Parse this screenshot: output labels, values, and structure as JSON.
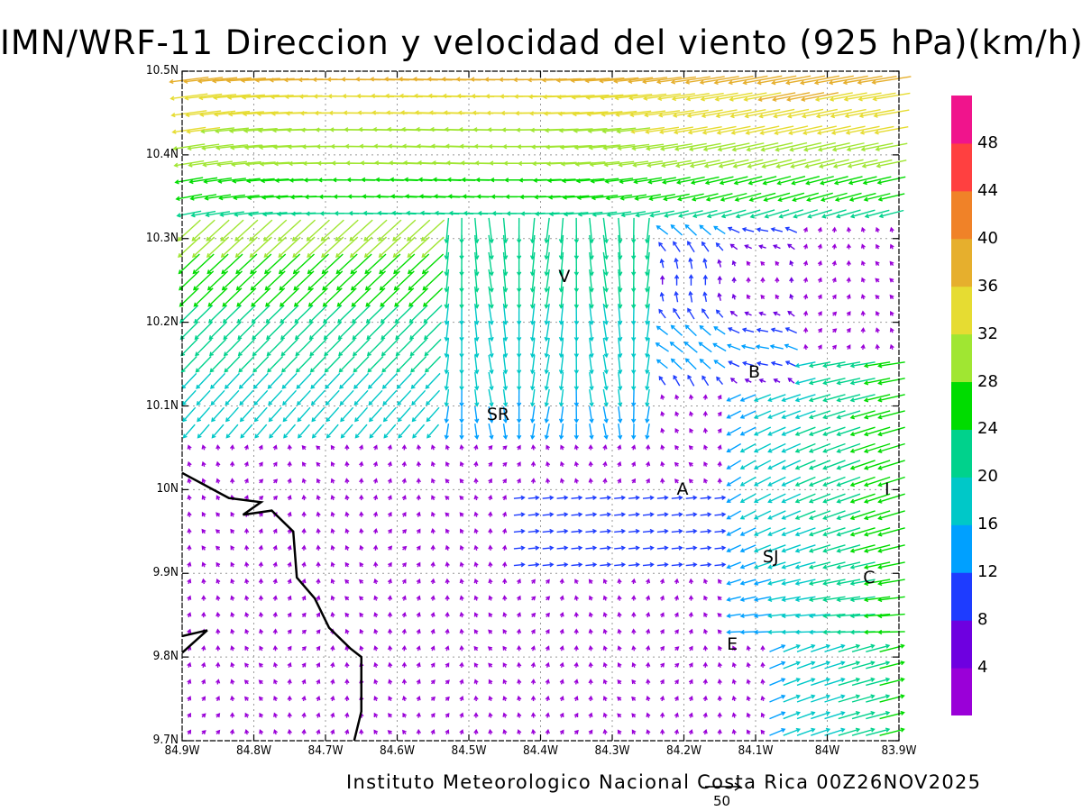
{
  "title": "IMN/WRF-11 Direccion y velocidad del viento (925 hPa)(km/h)",
  "footer": "Instituto Meteorologico Nacional Costa Rica 00Z26NOV2025",
  "reference_vector": {
    "value": 50,
    "label": "50"
  },
  "axes": {
    "x_range": [
      -84.9,
      -83.9
    ],
    "y_range": [
      9.7,
      10.5
    ],
    "x_ticks": [
      {
        "value": -84.9,
        "label": "84.9W"
      },
      {
        "value": -84.8,
        "label": "84.8W"
      },
      {
        "value": -84.7,
        "label": "84.7W"
      },
      {
        "value": -84.6,
        "label": "84.6W"
      },
      {
        "value": -84.5,
        "label": "84.5W"
      },
      {
        "value": -84.4,
        "label": "84.4W"
      },
      {
        "value": -84.3,
        "label": "84.3W"
      },
      {
        "value": -84.2,
        "label": "84.2W"
      },
      {
        "value": -84.1,
        "label": "84.1W"
      },
      {
        "value": -84.0,
        "label": "84W"
      },
      {
        "value": -83.9,
        "label": "83.9W"
      }
    ],
    "y_ticks": [
      {
        "value": 9.7,
        "label": "9.7N"
      },
      {
        "value": 9.8,
        "label": "9.8N"
      },
      {
        "value": 9.9,
        "label": "9.9N"
      },
      {
        "value": 10.0,
        "label": "10N"
      },
      {
        "value": 10.1,
        "label": "10.1N"
      },
      {
        "value": 10.2,
        "label": "10.2N"
      },
      {
        "value": 10.3,
        "label": "10.3N"
      },
      {
        "value": 10.4,
        "label": "10.4N"
      },
      {
        "value": 10.5,
        "label": "10.5N"
      }
    ],
    "grid": true
  },
  "colorbar": {
    "colors": [
      "#9a00d8",
      "#6e00e0",
      "#1e3cff",
      "#00a0ff",
      "#00c8c8",
      "#00d28c",
      "#00dc00",
      "#a0e632",
      "#e6dc32",
      "#e6af2d",
      "#f08228",
      "#ff4040",
      "#f0148c"
    ],
    "labels": [
      {
        "level": 1,
        "label": "4"
      },
      {
        "level": 2,
        "label": "8"
      },
      {
        "level": 3,
        "label": "12"
      },
      {
        "level": 4,
        "label": "16"
      },
      {
        "level": 5,
        "label": "20"
      },
      {
        "level": 6,
        "label": "24"
      },
      {
        "level": 7,
        "label": "28"
      },
      {
        "level": 8,
        "label": "32"
      },
      {
        "level": 9,
        "label": "36"
      },
      {
        "level": 10,
        "label": "40"
      },
      {
        "level": 11,
        "label": "44"
      },
      {
        "level": 12,
        "label": "48"
      }
    ]
  },
  "cities": [
    {
      "name": "V",
      "lon": -84.365,
      "lat": 10.255
    },
    {
      "name": "B",
      "lon": -84.1,
      "lat": 10.14
    },
    {
      "name": "SR",
      "lon": -84.465,
      "lat": 10.09
    },
    {
      "name": "A",
      "lon": -84.2,
      "lat": 10.0
    },
    {
      "name": "I",
      "lon": -83.91,
      "lat": 10.0
    },
    {
      "name": "SJ",
      "lon": -84.08,
      "lat": 9.92
    },
    {
      "name": "C",
      "lon": -83.94,
      "lat": 9.895
    },
    {
      "name": "E",
      "lon": -84.13,
      "lat": 9.815
    }
  ],
  "coastline": [
    [
      -84.9,
      10.02
    ],
    [
      -84.835,
      9.99
    ],
    [
      -84.79,
      9.985
    ],
    [
      -84.815,
      9.97
    ],
    [
      -84.775,
      9.975
    ],
    [
      -84.745,
      9.95
    ],
    [
      -84.74,
      9.895
    ],
    [
      -84.715,
      9.87
    ],
    [
      -84.695,
      9.835
    ],
    [
      -84.665,
      9.81
    ],
    [
      -84.65,
      9.8
    ],
    [
      -84.65,
      9.735
    ],
    [
      -84.66,
      9.7
    ]
  ],
  "island": [
    [
      -84.9,
      9.825
    ],
    [
      -84.865,
      9.832
    ],
    [
      -84.9,
      9.805
    ]
  ],
  "chart_data": {
    "type": "vector-field",
    "units": "km/h",
    "level": "925 hPa",
    "grid_spacing_deg": 0.02,
    "vectors": [
      {
        "region": "north-band",
        "lat_range": [
          10.35,
          10.5
        ],
        "lon_range": [
          -84.9,
          -83.9
        ],
        "direction": "west-southwest (toward)",
        "speed_kmh": [
          24,
          44
        ]
      },
      {
        "region": "northwest",
        "lat_range": [
          10.1,
          10.35
        ],
        "lon_range": [
          -84.9,
          -84.55
        ],
        "direction": "toward southwest",
        "speed_kmh": [
          20,
          40
        ]
      },
      {
        "region": "central-north",
        "lat_range": [
          10.05,
          10.35
        ],
        "lon_range": [
          -84.55,
          -84.25
        ],
        "direction": "toward south/southwest",
        "speed_kmh": [
          12,
          32
        ]
      },
      {
        "region": "east",
        "lat_range": [
          9.8,
          10.15
        ],
        "lon_range": [
          -84.15,
          -83.9
        ],
        "direction": "toward west/southwest",
        "speed_kmh": [
          16,
          36
        ]
      },
      {
        "region": "south-central",
        "lat_range": [
          9.7,
          10.05
        ],
        "lon_range": [
          -84.9,
          -84.2
        ],
        "direction": "variable, weak",
        "speed_kmh": [
          0,
          8
        ]
      }
    ]
  }
}
